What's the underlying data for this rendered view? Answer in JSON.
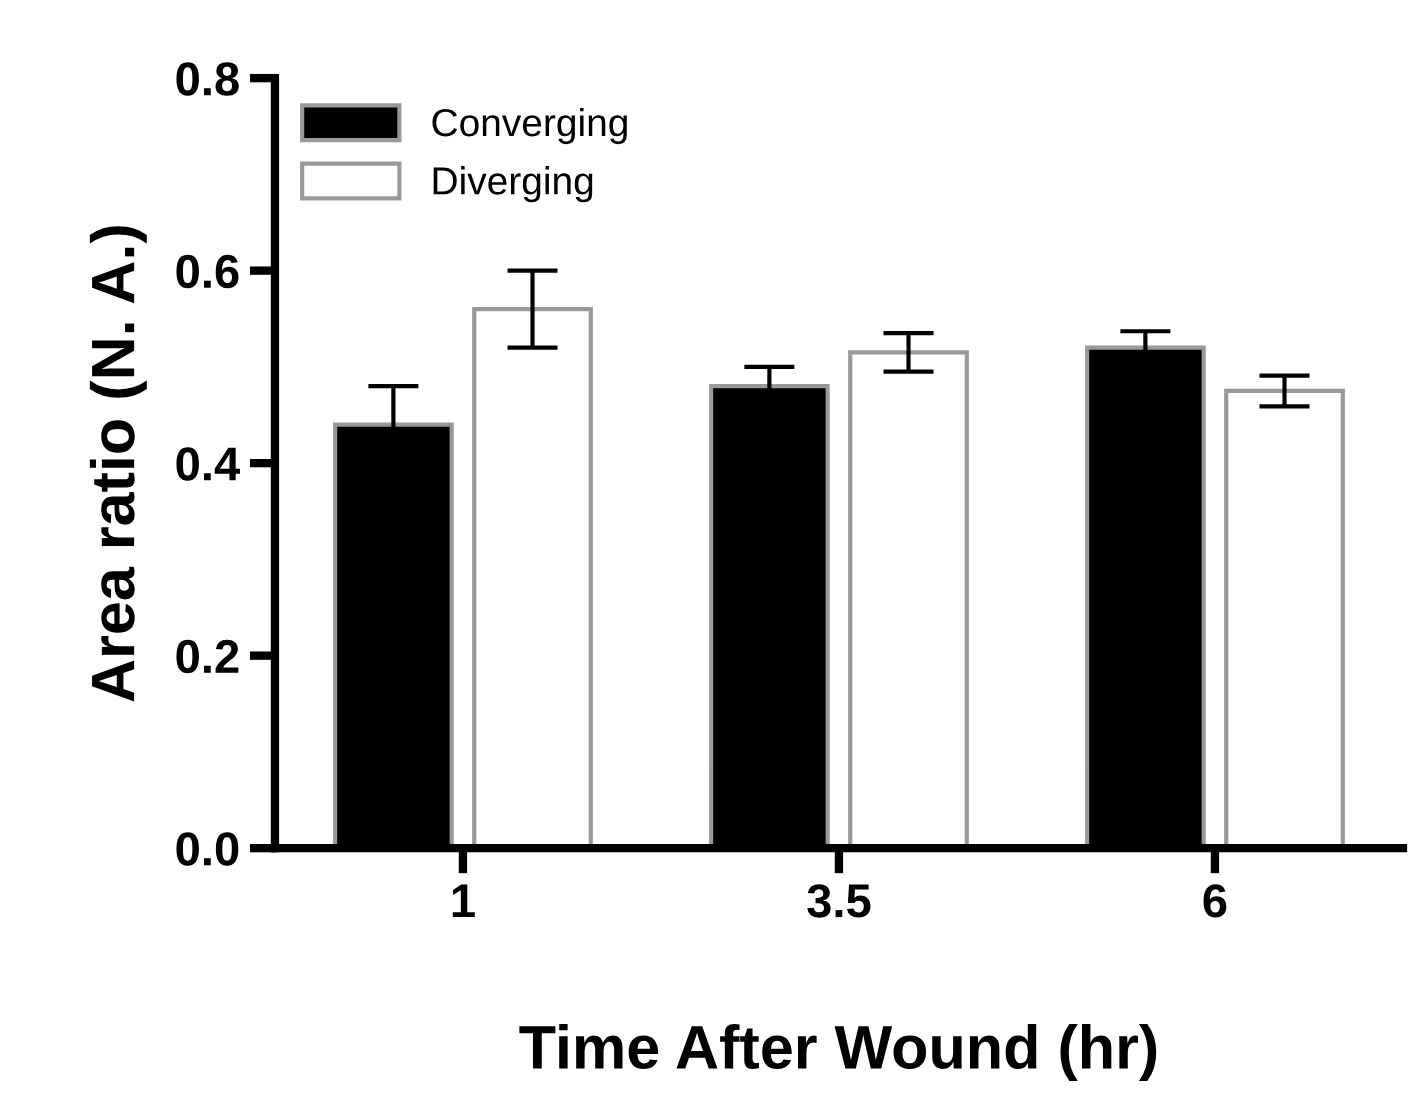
{
  "chart_data": {
    "type": "bar",
    "xlabel": "Time After Wound (hr)",
    "ylabel": "Area ratio (N. A.)",
    "categories": [
      "1",
      "3.5",
      "6"
    ],
    "series": [
      {
        "name": "Converging",
        "color": "#000000",
        "values": [
          0.44,
          0.48,
          0.52
        ],
        "errors": [
          0.04,
          0.02,
          0.017
        ]
      },
      {
        "name": "Diverging",
        "color": "#ffffff",
        "values": [
          0.56,
          0.515,
          0.475
        ],
        "errors": [
          0.04,
          0.02,
          0.016
        ]
      }
    ],
    "ylim": [
      0,
      0.8
    ],
    "yticks": [
      {
        "value": 0,
        "label": "0.0"
      },
      0.2,
      0.4,
      0.6,
      0.8
    ],
    "grid": false,
    "legend": "top left"
  }
}
